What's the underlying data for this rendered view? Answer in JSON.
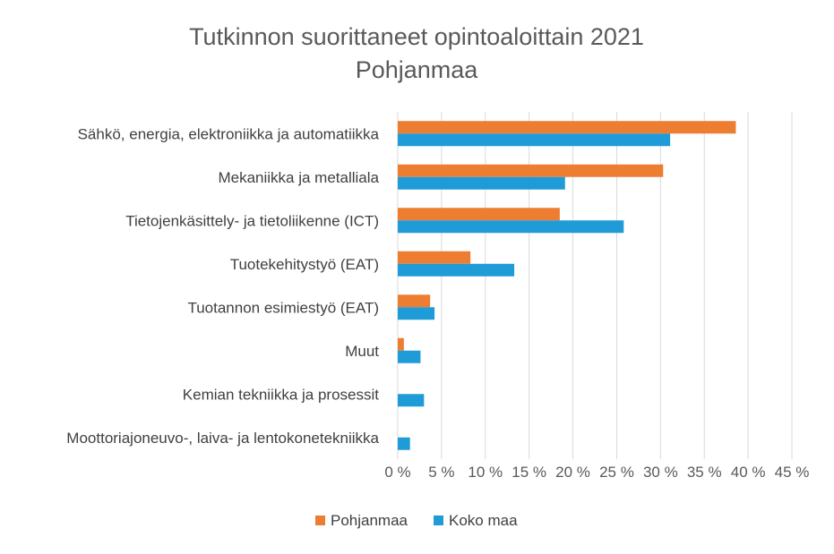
{
  "chart_data": {
    "type": "bar",
    "orientation": "horizontal",
    "title": "Tutkinnon suorittaneet opintoaloittain 2021",
    "subtitle": "Pohjanmaa",
    "categories": [
      "Sähkö, energia, elektroniikka ja automatiikka",
      "Mekaniikka ja metalliala",
      "Tietojenkäsittely- ja tietoliikenne (ICT)",
      "Tuotekehitystyö (EAT)",
      "Tuotannon esimiestyö (EAT)",
      "Muut",
      "Kemian tekniikka ja prosessit",
      "Moottoriajoneuvo-, laiva- ja lentokonetekniikka"
    ],
    "series": [
      {
        "name": "Pohjanmaa",
        "color": "#ED7D31",
        "values": [
          38.6,
          30.3,
          18.5,
          8.3,
          3.7,
          0.7,
          0,
          0
        ]
      },
      {
        "name": "Koko maa",
        "color": "#1F9BD7",
        "values": [
          31.1,
          19.1,
          25.8,
          13.3,
          4.2,
          2.6,
          3.0,
          1.4
        ]
      }
    ],
    "x_ticks": [
      "0 %",
      "5 %",
      "10 %",
      "15 %",
      "20 %",
      "25 %",
      "30 %",
      "35 %",
      "40 %",
      "45 %"
    ],
    "xlim": [
      0,
      45
    ],
    "grid": true,
    "legend_position": "bottom"
  }
}
